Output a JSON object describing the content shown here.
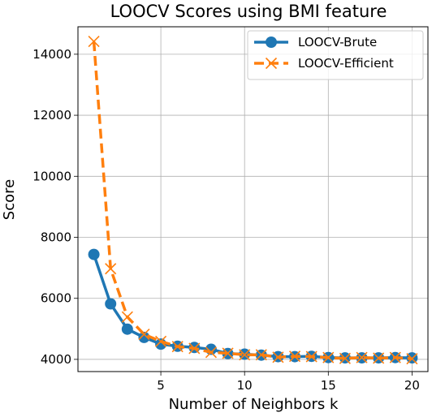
{
  "chart_data": {
    "type": "line",
    "title": "LOOCV Scores using BMI feature",
    "xlabel": "Number of Neighbors k",
    "ylabel": "Score",
    "xlim": [
      0.05,
      20.95
    ],
    "ylim": [
      3600,
      14900
    ],
    "xticks": [
      5,
      10,
      15,
      20
    ],
    "yticks": [
      4000,
      6000,
      8000,
      10000,
      12000,
      14000
    ],
    "grid": true,
    "legend_position": "top-right",
    "x": [
      1,
      2,
      3,
      4,
      5,
      6,
      7,
      8,
      9,
      10,
      11,
      12,
      13,
      14,
      15,
      16,
      17,
      18,
      19,
      20
    ],
    "series": [
      {
        "name": "LOOCV-Brute",
        "color": "#1f77b4",
        "linestyle": "solid",
        "marker": "circle",
        "values": [
          7440,
          5820,
          4990,
          4720,
          4500,
          4430,
          4390,
          4330,
          4190,
          4170,
          4140,
          4090,
          4090,
          4100,
          4060,
          4050,
          4050,
          4050,
          4060,
          4050
        ]
      },
      {
        "name": "LOOCV-Efficient",
        "color": "#ff7f0e",
        "linestyle": "dashed",
        "marker": "x",
        "values": [
          14420,
          6970,
          5390,
          4820,
          4590,
          4420,
          4360,
          4230,
          4200,
          4150,
          4150,
          4070,
          4100,
          4090,
          4060,
          4030,
          4060,
          4040,
          4060,
          4020
        ]
      }
    ]
  }
}
